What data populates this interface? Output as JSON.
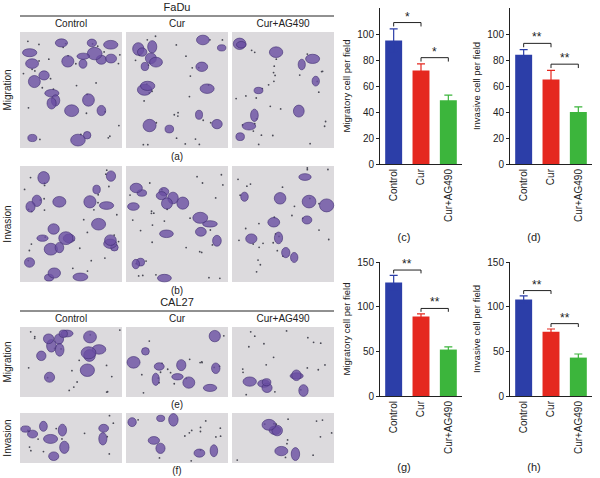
{
  "image_figure": [
    {
      "title": "FaDu",
      "columns": [
        "Control",
        "Cur",
        "Cur+AG490"
      ],
      "rows": [
        {
          "label": "Migration",
          "panel": "(a)"
        },
        {
          "label": "Invasion",
          "panel": "(b)"
        }
      ]
    },
    {
      "title": "CAL27",
      "columns": [
        "Control",
        "Cur",
        "Cur+AG490"
      ],
      "rows": [
        {
          "label": "Migration",
          "panel": "(e)"
        },
        {
          "label": "Invasion",
          "panel": "(f)"
        }
      ]
    }
  ],
  "chart_data": [
    {
      "type": "bar",
      "panel": "(c)",
      "ylabel": "Migratory cell per field",
      "categories": [
        "Control",
        "Cur",
        "Cur+AG490"
      ],
      "values": [
        95,
        72,
        49
      ],
      "errors": [
        9,
        5,
        4
      ],
      "colors": [
        "#2c3ea8",
        "#e5281f",
        "#3cb53c"
      ],
      "ylim": [
        0,
        120
      ],
      "yticks": [
        0,
        20,
        40,
        60,
        80,
        100
      ],
      "annotations": [
        {
          "text": "*",
          "between": [
            "Control",
            "Cur"
          ]
        },
        {
          "text": "*",
          "between": [
            "Cur",
            "Cur+AG490"
          ]
        }
      ]
    },
    {
      "type": "bar",
      "panel": "(d)",
      "ylabel": "Invasive cell per field",
      "categories": [
        "Control",
        "Cur",
        "Cur+AG490"
      ],
      "values": [
        84,
        65,
        40
      ],
      "errors": [
        4,
        7,
        4
      ],
      "colors": [
        "#2c3ea8",
        "#e5281f",
        "#3cb53c"
      ],
      "ylim": [
        0,
        120
      ],
      "yticks": [
        0,
        20,
        40,
        60,
        80,
        100
      ],
      "annotations": [
        {
          "text": "**",
          "between": [
            "Control",
            "Cur"
          ]
        },
        {
          "text": "**",
          "between": [
            "Cur",
            "Cur+AG490"
          ]
        }
      ]
    },
    {
      "type": "bar",
      "panel": "(g)",
      "ylabel": "Migratory cell per field",
      "categories": [
        "Control",
        "Cur",
        "Cur+AG490"
      ],
      "values": [
        127,
        89,
        52
      ],
      "errors": [
        8,
        3,
        3
      ],
      "colors": [
        "#2c3ea8",
        "#e5281f",
        "#3cb53c"
      ],
      "ylim": [
        0,
        150
      ],
      "yticks": [
        0,
        50,
        100,
        150
      ],
      "annotations": [
        {
          "text": "**",
          "between": [
            "Control",
            "Cur"
          ]
        },
        {
          "text": "**",
          "between": [
            "Cur",
            "Cur+AG490"
          ]
        }
      ]
    },
    {
      "type": "bar",
      "panel": "(h)",
      "ylabel": "Invasive cell per field",
      "categories": [
        "Control",
        "Cur",
        "Cur+AG490"
      ],
      "values": [
        108,
        72,
        43
      ],
      "errors": [
        4,
        3,
        4
      ],
      "colors": [
        "#2c3ea8",
        "#e5281f",
        "#3cb53c"
      ],
      "ylim": [
        0,
        150
      ],
      "yticks": [
        0,
        50,
        100,
        150
      ],
      "annotations": [
        {
          "text": "**",
          "between": [
            "Control",
            "Cur"
          ]
        },
        {
          "text": "**",
          "between": [
            "Cur",
            "Cur+AG490"
          ]
        }
      ]
    }
  ]
}
